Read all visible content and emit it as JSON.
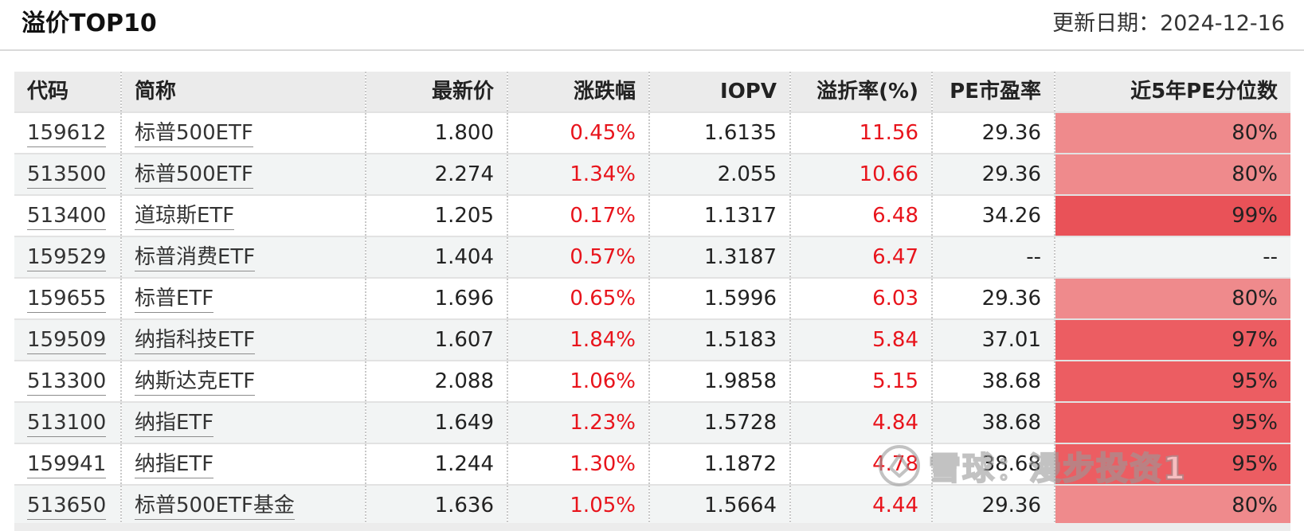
{
  "header": {
    "title": "溢价TOP10",
    "update_text": "更新日期：2024-12-16"
  },
  "table": {
    "columns": [
      "代码",
      "简称",
      "最新价",
      "涨跌幅",
      "IOPV",
      "溢折率(%)",
      "PE市盈率",
      "近5年PE分位数"
    ],
    "rows": [
      {
        "code": "159612",
        "name": "标普500ETF",
        "price": "1.800",
        "change": "0.45%",
        "iopv": "1.6135",
        "premium": "11.56",
        "pe": "29.36",
        "pe_pct": "80%",
        "pe_pct_value": 80
      },
      {
        "code": "513500",
        "name": "标普500ETF",
        "price": "2.274",
        "change": "1.34%",
        "iopv": "2.055",
        "premium": "10.66",
        "pe": "29.36",
        "pe_pct": "80%",
        "pe_pct_value": 80
      },
      {
        "code": "513400",
        "name": "道琼斯ETF",
        "price": "1.205",
        "change": "0.17%",
        "iopv": "1.1317",
        "premium": "6.48",
        "pe": "34.26",
        "pe_pct": "99%",
        "pe_pct_value": 99
      },
      {
        "code": "159529",
        "name": "标普消费ETF",
        "price": "1.404",
        "change": "0.57%",
        "iopv": "1.3187",
        "premium": "6.47",
        "pe": "--",
        "pe_pct": "--",
        "pe_pct_value": null
      },
      {
        "code": "159655",
        "name": "标普ETF",
        "price": "1.696",
        "change": "0.65%",
        "iopv": "1.5996",
        "premium": "6.03",
        "pe": "29.36",
        "pe_pct": "80%",
        "pe_pct_value": 80
      },
      {
        "code": "159509",
        "name": "纳指科技ETF",
        "price": "1.607",
        "change": "1.84%",
        "iopv": "1.5183",
        "premium": "5.84",
        "pe": "37.01",
        "pe_pct": "97%",
        "pe_pct_value": 97
      },
      {
        "code": "513300",
        "name": "纳斯达克ETF",
        "price": "2.088",
        "change": "1.06%",
        "iopv": "1.9858",
        "premium": "5.15",
        "pe": "38.68",
        "pe_pct": "95%",
        "pe_pct_value": 95
      },
      {
        "code": "513100",
        "name": "纳指ETF",
        "price": "1.649",
        "change": "1.23%",
        "iopv": "1.5728",
        "premium": "4.84",
        "pe": "38.68",
        "pe_pct": "95%",
        "pe_pct_value": 95
      },
      {
        "code": "159941",
        "name": "纳指ETF",
        "price": "1.244",
        "change": "1.30%",
        "iopv": "1.1872",
        "premium": "4.78",
        "pe": "38.68",
        "pe_pct": "95%",
        "pe_pct_value": 95
      },
      {
        "code": "513650",
        "name": "标普500ETF基金",
        "price": "1.636",
        "change": "1.05%",
        "iopv": "1.5664",
        "premium": "4.44",
        "pe": "29.36",
        "pe_pct": "80%",
        "pe_pct_value": 80
      }
    ]
  },
  "colors": {
    "positive": "#e8141c",
    "pct_80": "#ef8a8c",
    "pct_95": "#ec5d62",
    "pct_99": "#e95258"
  },
  "watermark": {
    "text": "雪球：漫步投资1",
    "icon": "xueqiu-logo-icon"
  }
}
